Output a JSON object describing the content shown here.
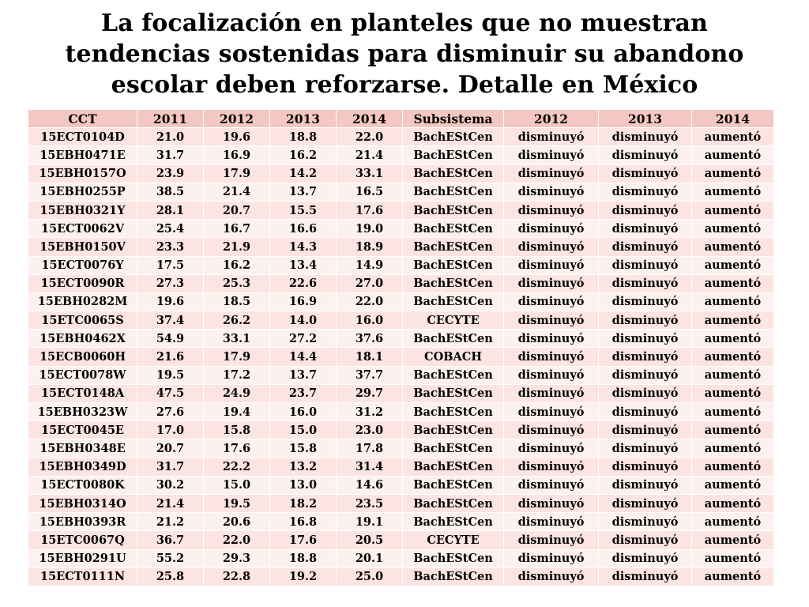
{
  "title": {
    "line1": "La focalización en planteles que no muestran",
    "line2": "tendencias sostenidas para disminuir su abandono",
    "line3": "escolar  deben reforzarse. Detalle en México"
  },
  "table": {
    "headers": [
      "CCT",
      "2011",
      "2012",
      "2013",
      "2014",
      "Subsistema",
      "2012",
      "2013",
      "2014"
    ],
    "rows": [
      [
        "15ECT0104D",
        "21.0",
        "19.6",
        "18.8",
        "22.0",
        "BachEStCen",
        "disminuyó",
        "disminuyó",
        "aumentó"
      ],
      [
        "15EBH0471E",
        "31.7",
        "16.9",
        "16.2",
        "21.4",
        "BachEStCen",
        "disminuyó",
        "disminuyó",
        "aumentó"
      ],
      [
        "15EBH0157O",
        "23.9",
        "17.9",
        "14.2",
        "33.1",
        "BachEStCen",
        "disminuyó",
        "disminuyó",
        "aumentó"
      ],
      [
        "15EBH0255P",
        "38.5",
        "21.4",
        "13.7",
        "16.5",
        "BachEStCen",
        "disminuyó",
        "disminuyó",
        "aumentó"
      ],
      [
        "15EBH0321Y",
        "28.1",
        "20.7",
        "15.5",
        "17.6",
        "BachEStCen",
        "disminuyó",
        "disminuyó",
        "aumentó"
      ],
      [
        "15ECT0062V",
        "25.4",
        "16.7",
        "16.6",
        "19.0",
        "BachEStCen",
        "disminuyó",
        "disminuyó",
        "aumentó"
      ],
      [
        "15EBH0150V",
        "23.3",
        "21.9",
        "14.3",
        "18.9",
        "BachEStCen",
        "disminuyó",
        "disminuyó",
        "aumentó"
      ],
      [
        "15ECT0076Y",
        "17.5",
        "16.2",
        "13.4",
        "14.9",
        "BachEStCen",
        "disminuyó",
        "disminuyó",
        "aumentó"
      ],
      [
        "15ECT0090R",
        "27.3",
        "25.3",
        "22.6",
        "27.0",
        "BachEStCen",
        "disminuyó",
        "disminuyó",
        "aumentó"
      ],
      [
        "15EBH0282M",
        "19.6",
        "18.5",
        "16.9",
        "22.0",
        "BachEStCen",
        "disminuyó",
        "disminuyó",
        "aumentó"
      ],
      [
        "15ETC0065S",
        "37.4",
        "26.2",
        "14.0",
        "16.0",
        "CECYTE",
        "disminuyó",
        "disminuyó",
        "aumentó"
      ],
      [
        "15EBH0462X",
        "54.9",
        "33.1",
        "27.2",
        "37.6",
        "BachEStCen",
        "disminuyó",
        "disminuyó",
        "aumentó"
      ],
      [
        "15ECB0060H",
        "21.6",
        "17.9",
        "14.4",
        "18.1",
        "COBACH",
        "disminuyó",
        "disminuyó",
        "aumentó"
      ],
      [
        "15ECT0078W",
        "19.5",
        "17.2",
        "13.7",
        "37.7",
        "BachEStCen",
        "disminuyó",
        "disminuyó",
        "aumentó"
      ],
      [
        "15ECT0148A",
        "47.5",
        "24.9",
        "23.7",
        "29.7",
        "BachEStCen",
        "disminuyó",
        "disminuyó",
        "aumentó"
      ],
      [
        "15EBH0323W",
        "27.6",
        "19.4",
        "16.0",
        "31.2",
        "BachEStCen",
        "disminuyó",
        "disminuyó",
        "aumentó"
      ],
      [
        "15ECT0045E",
        "17.0",
        "15.8",
        "15.0",
        "23.0",
        "BachEStCen",
        "disminuyó",
        "disminuyó",
        "aumentó"
      ],
      [
        "15EBH0348E",
        "20.7",
        "17.6",
        "15.8",
        "17.8",
        "BachEStCen",
        "disminuyó",
        "disminuyó",
        "aumentó"
      ],
      [
        "15EBH0349D",
        "31.7",
        "22.2",
        "13.2",
        "31.4",
        "BachEStCen",
        "disminuyó",
        "disminuyó",
        "aumentó"
      ],
      [
        "15ECT0080K",
        "30.2",
        "15.0",
        "13.0",
        "14.6",
        "BachEStCen",
        "disminuyó",
        "disminuyó",
        "aumentó"
      ],
      [
        "15EBH0314O",
        "21.4",
        "19.5",
        "18.2",
        "23.5",
        "BachEStCen",
        "disminuyó",
        "disminuyó",
        "aumentó"
      ],
      [
        "15EBH0393R",
        "21.2",
        "20.6",
        "16.8",
        "19.1",
        "BachEStCen",
        "disminuyó",
        "disminuyó",
        "aumentó"
      ],
      [
        "15ETC0067Q",
        "36.7",
        "22.0",
        "17.6",
        "20.5",
        "CECYTE",
        "disminuyó",
        "disminuyó",
        "aumentó"
      ],
      [
        "15EBH0291U",
        "55.2",
        "29.3",
        "18.8",
        "20.1",
        "BachEStCen",
        "disminuyó",
        "disminuyó",
        "aumentó"
      ],
      [
        "15ECT0111N",
        "25.8",
        "22.8",
        "19.2",
        "25.0",
        "BachEStCen",
        "disminuyó",
        "disminuyó",
        "aumentó"
      ]
    ]
  },
  "colors": {
    "header_bg": "#f4c7c2",
    "row_odd_bg": "#fbe4e1",
    "row_even_bg": "#fdf1ef"
  }
}
